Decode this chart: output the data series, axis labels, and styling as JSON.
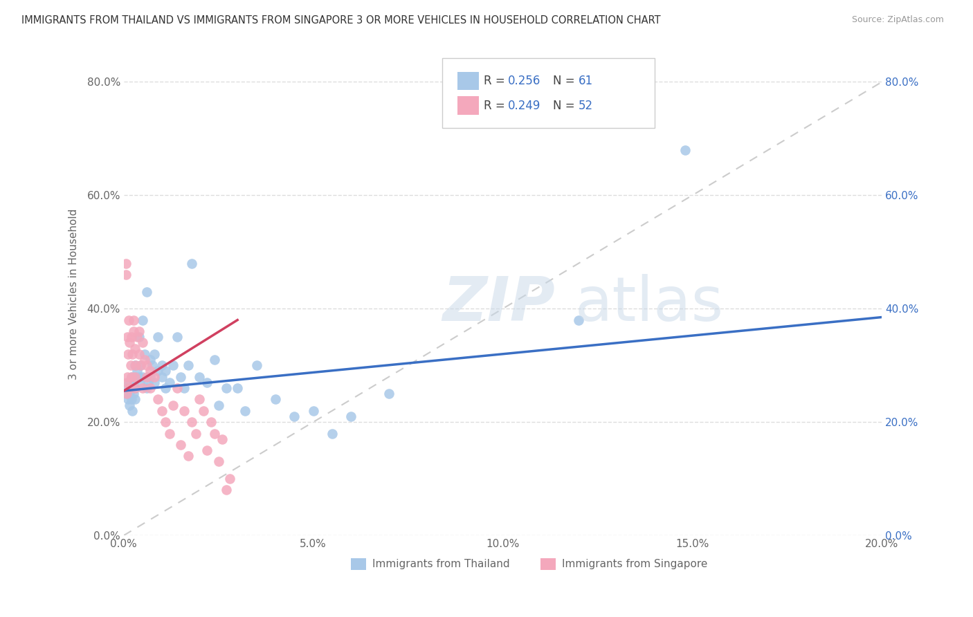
{
  "title": "IMMIGRANTS FROM THAILAND VS IMMIGRANTS FROM SINGAPORE 3 OR MORE VEHICLES IN HOUSEHOLD CORRELATION CHART",
  "source": "Source: ZipAtlas.com",
  "ylabel": "3 or more Vehicles in Household",
  "legend_label1": "Immigrants from Thailand",
  "legend_label2": "Immigrants from Singapore",
  "R1": 0.256,
  "N1": 61,
  "R2": 0.249,
  "N2": 52,
  "color1": "#a8c8e8",
  "color2": "#f4a8bc",
  "line_color1": "#3a6fc4",
  "line_color2": "#d04060",
  "text_color_blue": "#3a6fc4",
  "text_color_dark": "#444444",
  "xmin": 0.0,
  "xmax": 0.2,
  "ymin": 0.0,
  "ymax": 0.85,
  "yticks": [
    0.0,
    0.2,
    0.4,
    0.6,
    0.8
  ],
  "xticks": [
    0.0,
    0.05,
    0.1,
    0.15,
    0.2
  ],
  "watermark_zip": "ZIP",
  "watermark_atlas": "atlas",
  "blue_line_x0": 0.0,
  "blue_line_y0": 0.255,
  "blue_line_x1": 0.2,
  "blue_line_y1": 0.385,
  "pink_line_x0": 0.0,
  "pink_line_y0": 0.255,
  "pink_line_x1": 0.03,
  "pink_line_y1": 0.38,
  "thailand_x": [
    0.0008,
    0.001,
    0.0012,
    0.0013,
    0.0015,
    0.0015,
    0.0018,
    0.002,
    0.002,
    0.0022,
    0.0025,
    0.0025,
    0.003,
    0.003,
    0.003,
    0.0032,
    0.0035,
    0.004,
    0.004,
    0.0042,
    0.0045,
    0.005,
    0.005,
    0.0055,
    0.006,
    0.006,
    0.0065,
    0.007,
    0.007,
    0.0075,
    0.008,
    0.008,
    0.009,
    0.009,
    0.01,
    0.01,
    0.011,
    0.011,
    0.012,
    0.013,
    0.014,
    0.015,
    0.016,
    0.017,
    0.018,
    0.02,
    0.022,
    0.024,
    0.025,
    0.027,
    0.03,
    0.032,
    0.035,
    0.04,
    0.045,
    0.05,
    0.055,
    0.06,
    0.07,
    0.12,
    0.148
  ],
  "thailand_y": [
    0.25,
    0.26,
    0.24,
    0.27,
    0.25,
    0.23,
    0.26,
    0.28,
    0.24,
    0.22,
    0.27,
    0.25,
    0.3,
    0.26,
    0.24,
    0.28,
    0.29,
    0.35,
    0.28,
    0.27,
    0.3,
    0.38,
    0.28,
    0.32,
    0.43,
    0.26,
    0.27,
    0.31,
    0.28,
    0.3,
    0.27,
    0.32,
    0.29,
    0.35,
    0.28,
    0.3,
    0.26,
    0.29,
    0.27,
    0.3,
    0.35,
    0.28,
    0.26,
    0.3,
    0.48,
    0.28,
    0.27,
    0.31,
    0.23,
    0.26,
    0.26,
    0.22,
    0.3,
    0.24,
    0.21,
    0.22,
    0.18,
    0.21,
    0.25,
    0.38,
    0.68
  ],
  "singapore_x": [
    0.0005,
    0.0006,
    0.0007,
    0.0008,
    0.001,
    0.001,
    0.0012,
    0.0013,
    0.0015,
    0.0015,
    0.0018,
    0.002,
    0.002,
    0.0022,
    0.0025,
    0.0025,
    0.003,
    0.003,
    0.003,
    0.0032,
    0.0035,
    0.004,
    0.004,
    0.0045,
    0.005,
    0.005,
    0.0055,
    0.006,
    0.006,
    0.007,
    0.007,
    0.008,
    0.009,
    0.01,
    0.011,
    0.012,
    0.013,
    0.014,
    0.015,
    0.016,
    0.017,
    0.018,
    0.019,
    0.02,
    0.021,
    0.022,
    0.023,
    0.024,
    0.025,
    0.026,
    0.027,
    0.028
  ],
  "singapore_y": [
    0.48,
    0.46,
    0.25,
    0.27,
    0.35,
    0.28,
    0.32,
    0.38,
    0.34,
    0.26,
    0.3,
    0.35,
    0.28,
    0.32,
    0.38,
    0.36,
    0.33,
    0.26,
    0.28,
    0.3,
    0.35,
    0.32,
    0.36,
    0.3,
    0.34,
    0.26,
    0.31,
    0.3,
    0.28,
    0.29,
    0.26,
    0.28,
    0.24,
    0.22,
    0.2,
    0.18,
    0.23,
    0.26,
    0.16,
    0.22,
    0.14,
    0.2,
    0.18,
    0.24,
    0.22,
    0.15,
    0.2,
    0.18,
    0.13,
    0.17,
    0.08,
    0.1
  ]
}
